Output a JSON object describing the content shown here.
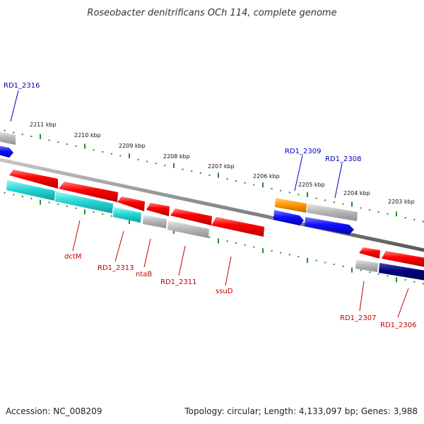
{
  "title": "Roseobacter denitrificans OCh 114, complete genome",
  "footer": {
    "accession": "Accession: NC_008209",
    "summary": "Topology: circular; Length: 4,133,097 bp; Genes: 3,988"
  },
  "colors": {
    "background": "#ffffff",
    "backbone": "#8a8a8a",
    "ticks": "#2a8a2a",
    "gene_red": "#ff0000",
    "gene_cyan": "#27d6d6",
    "gene_gray": "#b9b9b9",
    "gene_blue": "#1010ff",
    "gene_navy": "#000080",
    "gene_orange": "#ff9900",
    "label_blue": "#0000c0",
    "label_red": "#c00000"
  },
  "kbp_labels": [
    "2211 kbp",
    "2210 kbp",
    "2209 kbp",
    "2208 kbp",
    "2207 kbp",
    "2206 kbp",
    "2205 kbp",
    "2204 kbp",
    "2203 kbp"
  ],
  "gene_labels": [
    {
      "text": "RD1_2316",
      "color": "blue"
    },
    {
      "text": "RD1_2309",
      "color": "blue"
    },
    {
      "text": "RD1_2308",
      "color": "blue"
    },
    {
      "text": "dctM",
      "color": "red"
    },
    {
      "text": "RD1_2313",
      "color": "red"
    },
    {
      "text": "ntaB",
      "color": "red"
    },
    {
      "text": "RD1_2311",
      "color": "red"
    },
    {
      "text": "ssuD",
      "color": "red"
    },
    {
      "text": "RD1_2307",
      "color": "red"
    },
    {
      "text": "RD1_2306",
      "color": "red"
    }
  ]
}
